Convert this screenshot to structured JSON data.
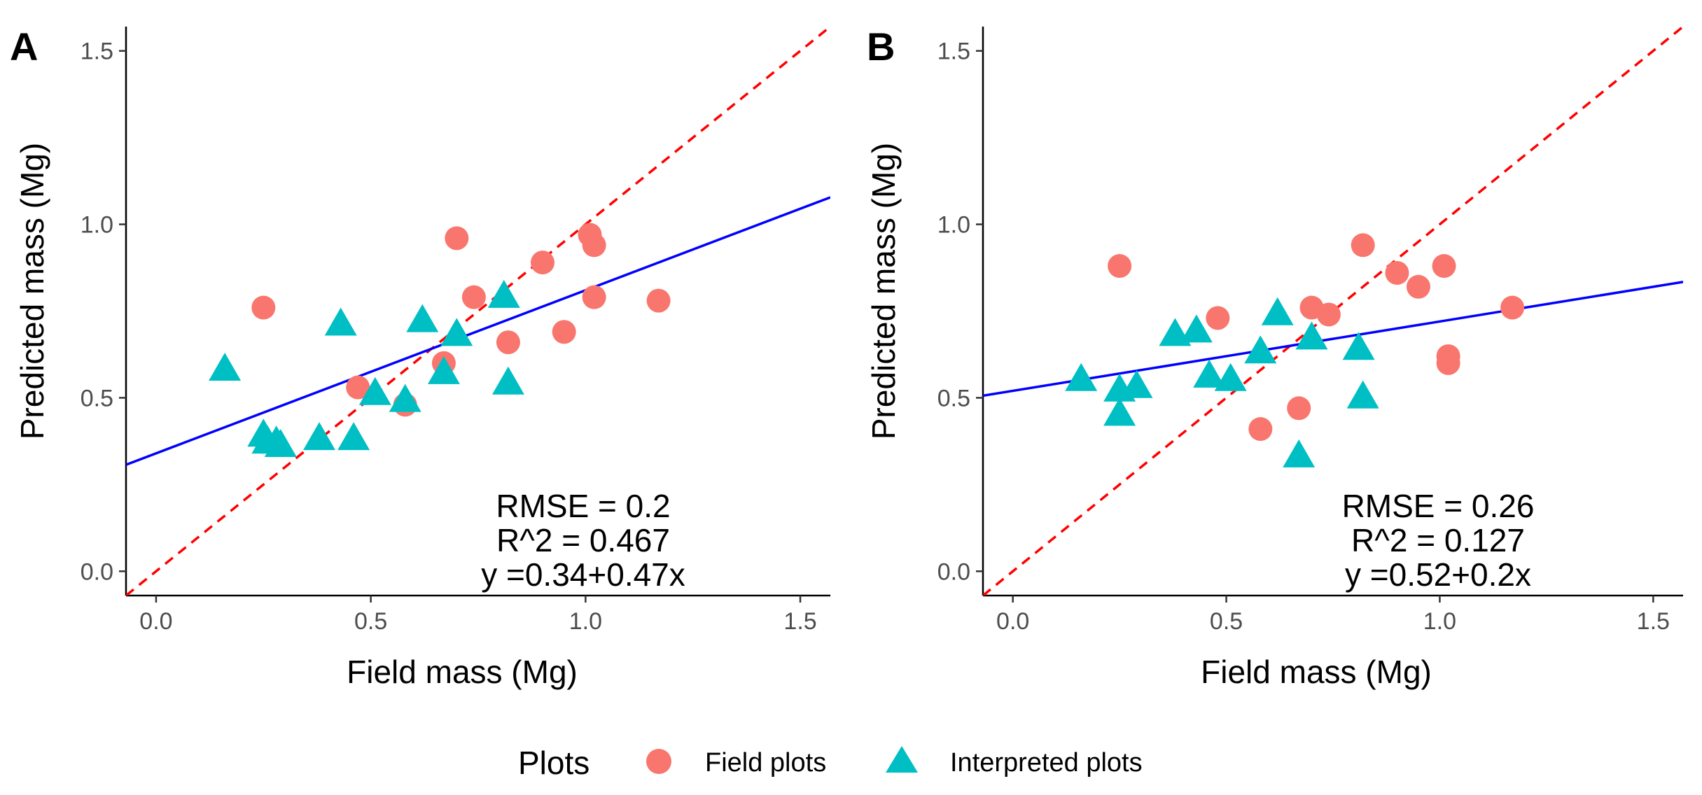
{
  "chart_data": [
    {
      "type": "scatter",
      "panel_label": "A",
      "xlabel": "Field mass (Mg)",
      "ylabel": "Predicted mass (Mg)",
      "xlim": [
        -0.07,
        1.57
      ],
      "ylim": [
        -0.07,
        1.57
      ],
      "xticks": [
        0.0,
        0.5,
        1.0,
        1.5
      ],
      "yticks": [
        0.0,
        0.5,
        1.0,
        1.5
      ],
      "xtick_labels": [
        "0.0",
        "0.5",
        "1.0",
        "1.5"
      ],
      "ytick_labels": [
        "0.0",
        "0.5",
        "1.0",
        "1.5"
      ],
      "grid": false,
      "series": [
        {
          "name": "Field plots",
          "marker": "circle",
          "color": "#F8766D",
          "points": [
            [
              0.25,
              0.76
            ],
            [
              0.47,
              0.53
            ],
            [
              0.58,
              0.48
            ],
            [
              0.67,
              0.6
            ],
            [
              0.7,
              0.96
            ],
            [
              0.74,
              0.79
            ],
            [
              0.82,
              0.66
            ],
            [
              0.9,
              0.89
            ],
            [
              0.95,
              0.69
            ],
            [
              1.01,
              0.97
            ],
            [
              1.02,
              0.94
            ],
            [
              1.02,
              0.79
            ],
            [
              1.17,
              0.78
            ]
          ]
        },
        {
          "name": "Interpreted plots",
          "marker": "triangle",
          "color": "#00BFC4",
          "points": [
            [
              0.16,
              0.58
            ],
            [
              0.25,
              0.39
            ],
            [
              0.26,
              0.37
            ],
            [
              0.28,
              0.37
            ],
            [
              0.29,
              0.36
            ],
            [
              0.38,
              0.38
            ],
            [
              0.43,
              0.71
            ],
            [
              0.46,
              0.38
            ],
            [
              0.51,
              0.51
            ],
            [
              0.58,
              0.49
            ],
            [
              0.62,
              0.72
            ],
            [
              0.67,
              0.57
            ],
            [
              0.7,
              0.68
            ],
            [
              0.81,
              0.79
            ],
            [
              0.82,
              0.54
            ]
          ]
        }
      ],
      "lines": [
        {
          "name": "1:1 line",
          "style": "dashed",
          "color": "#FF0000",
          "intercept": 0,
          "slope": 1
        },
        {
          "name": "fit",
          "style": "solid",
          "color": "#0000FF",
          "intercept": 0.34,
          "slope": 0.47
        }
      ],
      "annotations": {
        "rmse": "RMSE = 0.2",
        "r2": "R^2 = 0.467",
        "equation": "y =0.34+0.47x"
      }
    },
    {
      "type": "scatter",
      "panel_label": "B",
      "xlabel": "Field mass (Mg)",
      "ylabel": "Predicted mass (Mg)",
      "xlim": [
        -0.07,
        1.57
      ],
      "ylim": [
        -0.07,
        1.57
      ],
      "xticks": [
        0.0,
        0.5,
        1.0,
        1.5
      ],
      "yticks": [
        0.0,
        0.5,
        1.0,
        1.5
      ],
      "xtick_labels": [
        "0.0",
        "0.5",
        "1.0",
        "1.5"
      ],
      "ytick_labels": [
        "0.0",
        "0.5",
        "1.0",
        "1.5"
      ],
      "grid": false,
      "series": [
        {
          "name": "Field plots",
          "marker": "circle",
          "color": "#F8766D",
          "points": [
            [
              0.25,
              0.88
            ],
            [
              0.48,
              0.73
            ],
            [
              0.58,
              0.41
            ],
            [
              0.67,
              0.47
            ],
            [
              0.7,
              0.76
            ],
            [
              0.74,
              0.74
            ],
            [
              0.82,
              0.94
            ],
            [
              0.9,
              0.86
            ],
            [
              0.95,
              0.82
            ],
            [
              1.01,
              0.88
            ],
            [
              1.02,
              0.62
            ],
            [
              1.02,
              0.6
            ],
            [
              1.17,
              0.76
            ]
          ]
        },
        {
          "name": "Interpreted plots",
          "marker": "triangle",
          "color": "#00BFC4",
          "points": [
            [
              0.16,
              0.55
            ],
            [
              0.25,
              0.52
            ],
            [
              0.25,
              0.45
            ],
            [
              0.29,
              0.53
            ],
            [
              0.38,
              0.68
            ],
            [
              0.43,
              0.69
            ],
            [
              0.46,
              0.56
            ],
            [
              0.51,
              0.55
            ],
            [
              0.58,
              0.63
            ],
            [
              0.62,
              0.74
            ],
            [
              0.67,
              0.33
            ],
            [
              0.7,
              0.67
            ],
            [
              0.81,
              0.64
            ],
            [
              0.82,
              0.5
            ]
          ]
        }
      ],
      "lines": [
        {
          "name": "1:1 line",
          "style": "dashed",
          "color": "#FF0000",
          "intercept": 0,
          "slope": 1
        },
        {
          "name": "fit",
          "style": "solid",
          "color": "#0000FF",
          "intercept": 0.52,
          "slope": 0.2
        }
      ],
      "annotations": {
        "rmse": "RMSE = 0.26",
        "r2": "R^2 = 0.127",
        "equation": "y =0.52+0.2x"
      }
    }
  ],
  "legend": {
    "title": "Plots",
    "items": [
      {
        "label": "Field plots",
        "marker": "circle",
        "color": "#F8766D"
      },
      {
        "label": "Interpreted plots",
        "marker": "triangle",
        "color": "#00BFC4"
      }
    ]
  }
}
